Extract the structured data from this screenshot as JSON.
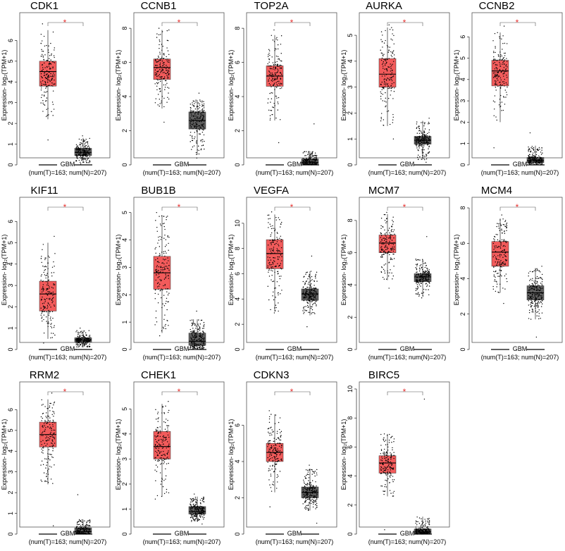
{
  "figure": {
    "ylabel": "Expression- log₂(TPM+1)",
    "group_label": "GBM",
    "counts_label": "(num(T)=163; num(N)=207)",
    "significance_mark": "*",
    "tumor_color": "#f25b5b",
    "normal_color": "#5f5f5f",
    "border_color": "#555555"
  },
  "chart_data": [
    {
      "type": "box",
      "title": "CDK1",
      "ylim": [
        0,
        7
      ],
      "ticks": [
        0,
        1,
        2,
        3,
        4,
        5,
        6
      ],
      "tumor": {
        "q1": 3.8,
        "median": 4.5,
        "q3": 5.0,
        "whisker_low": 2.2,
        "whisker_high": 6.5,
        "min": 1.2,
        "max": 6.8
      },
      "normal": {
        "q1": 0.45,
        "median": 0.6,
        "q3": 0.8,
        "whisker_low": 0.1,
        "whisker_high": 1.3,
        "min": 0.05,
        "max": 1.4
      }
    },
    {
      "type": "box",
      "title": "CCNB1",
      "ylim": [
        0,
        8.5
      ],
      "ticks": [
        0,
        2,
        4,
        6,
        8
      ],
      "tumor": {
        "q1": 5.0,
        "median": 5.7,
        "q3": 6.2,
        "whisker_low": 3.3,
        "whisker_high": 7.9,
        "min": 2.5,
        "max": 8.0
      },
      "normal": {
        "q1": 2.1,
        "median": 2.6,
        "q3": 3.1,
        "whisker_low": 0.6,
        "whisker_high": 3.8,
        "min": 0.4,
        "max": 4.2
      }
    },
    {
      "type": "box",
      "title": "TOP2A",
      "ylim": [
        0,
        8.5
      ],
      "ticks": [
        0,
        2,
        4,
        6,
        8
      ],
      "tumor": {
        "q1": 4.6,
        "median": 5.2,
        "q3": 5.8,
        "whisker_low": 2.6,
        "whisker_high": 7.6,
        "min": 1.3,
        "max": 7.9
      },
      "normal": {
        "q1": 0.05,
        "median": 0.15,
        "q3": 0.35,
        "whisker_low": 0.0,
        "whisker_high": 0.8,
        "min": 0.0,
        "max": 2.4
      }
    },
    {
      "type": "box",
      "title": "AURKA",
      "ylim": [
        0,
        5.6
      ],
      "ticks": [
        0,
        1,
        2,
        3,
        4,
        5
      ],
      "tumor": {
        "q1": 3.0,
        "median": 3.5,
        "q3": 4.1,
        "whisker_low": 1.5,
        "whisker_high": 5.3,
        "min": 1.0,
        "max": 5.4
      },
      "normal": {
        "q1": 0.8,
        "median": 0.95,
        "q3": 1.1,
        "whisker_low": 0.2,
        "whisker_high": 1.7,
        "min": 0.1,
        "max": 1.8
      }
    },
    {
      "type": "box",
      "title": "CCNB2",
      "ylim": [
        0,
        6.8
      ],
      "ticks": [
        0,
        1,
        2,
        3,
        4,
        5,
        6
      ],
      "tumor": {
        "q1": 3.7,
        "median": 4.4,
        "q3": 4.9,
        "whisker_low": 2.0,
        "whisker_high": 6.2,
        "min": 0.8,
        "max": 6.5
      },
      "normal": {
        "q1": 0.1,
        "median": 0.2,
        "q3": 0.35,
        "whisker_low": 0.0,
        "whisker_high": 0.9,
        "min": 0.0,
        "max": 1.5
      }
    },
    {
      "type": "box",
      "title": "KIF11",
      "ylim": [
        0,
        6.8
      ],
      "ticks": [
        0,
        1,
        2,
        3,
        4,
        5,
        6
      ],
      "tumor": {
        "q1": 1.8,
        "median": 2.6,
        "q3": 3.2,
        "whisker_low": 0.5,
        "whisker_high": 5.0,
        "min": 0.3,
        "max": 5.3
      },
      "normal": {
        "q1": 0.35,
        "median": 0.45,
        "q3": 0.55,
        "whisker_low": 0.1,
        "whisker_high": 0.9,
        "min": 0.0,
        "max": 1.0
      }
    },
    {
      "type": "box",
      "title": "BUB1B",
      "ylim": [
        0,
        5.3
      ],
      "ticks": [
        0,
        1,
        2,
        3,
        4,
        5
      ],
      "tumor": {
        "q1": 2.2,
        "median": 2.8,
        "q3": 3.4,
        "whisker_low": 0.6,
        "whisker_high": 4.9,
        "min": 0.5,
        "max": 5.0
      },
      "normal": {
        "q1": 0.15,
        "median": 0.3,
        "q3": 0.6,
        "whisker_low": 0.0,
        "whisker_high": 1.1,
        "min": 0.0,
        "max": 1.4
      }
    },
    {
      "type": "box",
      "title": "VEGFA",
      "ylim": [
        0,
        11.5
      ],
      "ticks": [
        0,
        2,
        4,
        6,
        8,
        10
      ],
      "tumor": {
        "q1": 6.4,
        "median": 7.6,
        "q3": 8.7,
        "whisker_low": 3.0,
        "whisker_high": 10.7,
        "min": 2.9,
        "max": 10.9
      },
      "normal": {
        "q1": 3.9,
        "median": 4.4,
        "q3": 4.8,
        "whisker_low": 2.7,
        "whisker_high": 6.2,
        "min": 1.8,
        "max": 7.4
      }
    },
    {
      "type": "box",
      "title": "MCM7",
      "ylim": [
        0,
        9
      ],
      "ticks": [
        0,
        2,
        4,
        6,
        8
      ],
      "tumor": {
        "q1": 6.0,
        "median": 6.6,
        "q3": 7.1,
        "whisker_low": 4.3,
        "whisker_high": 8.4,
        "min": 3.8,
        "max": 8.5
      },
      "normal": {
        "q1": 4.2,
        "median": 4.5,
        "q3": 4.7,
        "whisker_low": 3.3,
        "whisker_high": 5.6,
        "min": 3.2,
        "max": 7.0
      }
    },
    {
      "type": "box",
      "title": "MCM4",
      "ylim": [
        0,
        8.2
      ],
      "ticks": [
        0,
        2,
        4,
        6,
        8
      ],
      "tumor": {
        "q1": 4.7,
        "median": 5.5,
        "q3": 6.1,
        "whisker_low": 3.2,
        "whisker_high": 7.4,
        "min": 2.6,
        "max": 7.6
      },
      "normal": {
        "q1": 2.8,
        "median": 3.2,
        "q3": 3.6,
        "whisker_low": 1.7,
        "whisker_high": 4.6,
        "min": 0.7,
        "max": 4.7
      }
    },
    {
      "type": "box",
      "title": "RRM2",
      "ylim": [
        0,
        7
      ],
      "ticks": [
        0,
        1,
        2,
        3,
        4,
        5,
        6
      ],
      "tumor": {
        "q1": 4.2,
        "median": 4.8,
        "q3": 5.4,
        "whisker_low": 2.4,
        "whisker_high": 6.5,
        "min": 0.4,
        "max": 6.8
      },
      "normal": {
        "q1": 0.05,
        "median": 0.12,
        "q3": 0.3,
        "whisker_low": 0.0,
        "whisker_high": 0.7,
        "min": 0.0,
        "max": 1.9
      }
    },
    {
      "type": "box",
      "title": "CHEK1",
      "ylim": [
        0,
        5.8
      ],
      "ticks": [
        0,
        1,
        2,
        3,
        4,
        5
      ],
      "tumor": {
        "q1": 3.0,
        "median": 3.5,
        "q3": 4.1,
        "whisker_low": 1.5,
        "whisker_high": 5.2,
        "min": 1.4,
        "max": 5.3
      },
      "normal": {
        "q1": 0.8,
        "median": 0.9,
        "q3": 1.1,
        "whisker_low": 0.5,
        "whisker_high": 1.5,
        "min": 0.4,
        "max": 1.6
      }
    },
    {
      "type": "box",
      "title": "CDKN3",
      "ylim": [
        0,
        8
      ],
      "ticks": [
        0,
        2,
        4,
        6
      ],
      "tumor": {
        "q1": 4.0,
        "median": 4.5,
        "q3": 5.0,
        "whisker_low": 2.3,
        "whisker_high": 6.6,
        "min": 1.5,
        "max": 6.8
      },
      "normal": {
        "q1": 2.0,
        "median": 2.3,
        "q3": 2.6,
        "whisker_low": 1.3,
        "whisker_high": 3.6,
        "min": 0.6,
        "max": 3.8
      }
    },
    {
      "type": "box",
      "title": "BIRC5",
      "ylim": [
        0,
        10
      ],
      "ticks": [
        0,
        2,
        4,
        6,
        8,
        10
      ],
      "tumor": {
        "q1": 4.2,
        "median": 4.9,
        "q3": 5.4,
        "whisker_low": 2.6,
        "whisker_high": 6.9,
        "min": 0.3,
        "max": 6.9
      },
      "normal": {
        "q1": 0.05,
        "median": 0.15,
        "q3": 0.35,
        "whisker_low": 0.0,
        "whisker_high": 1.2,
        "min": 0.0,
        "max": 9.3
      }
    }
  ]
}
